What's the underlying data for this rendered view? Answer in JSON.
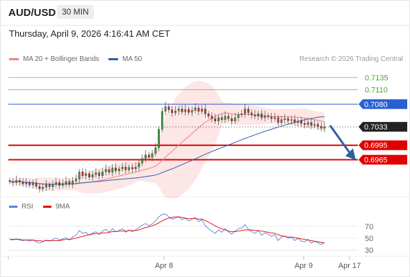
{
  "header": {
    "symbol": "AUD/USD",
    "timeframe": "30 MIN"
  },
  "datetime": "Thursday, April 9, 2026 4:16:41 AM CET",
  "legend": {
    "bb": "MA 20 + Bollinger Bands",
    "ma50": "MA 50"
  },
  "credit": "Research © 2026 Trading Central",
  "rsi_legend": {
    "rsi": "RSI",
    "ma": "9MA"
  },
  "colors": {
    "bb": "#f08080",
    "ma50": "#2b5fa8",
    "resistance": "#4aa52a",
    "pivot": "#2a5fd0",
    "support": "#e00000",
    "current": "#222222",
    "rsi": "#5b7fd6",
    "rsi_ma": "#e00000",
    "arrow": "#2f5f9e",
    "up": "#3a9a3a",
    "down": "#cc2b2b"
  },
  "chart_data": [
    {
      "type": "candlestick",
      "x_ticks": [
        "Apr 8",
        "Apr 9",
        "Apr 17"
      ],
      "levels": [
        {
          "value": 0.7135,
          "label": "0.7135",
          "kind": "resistance"
        },
        {
          "value": 0.711,
          "label": "0.7110",
          "kind": "resistance"
        },
        {
          "value": 0.708,
          "label": "0.7080",
          "kind": "pivot"
        },
        {
          "value": 0.7033,
          "label": "0.7033",
          "kind": "current"
        },
        {
          "value": 0.6995,
          "label": "0.6995",
          "kind": "support"
        },
        {
          "value": 0.6965,
          "label": "0.6965",
          "kind": "support"
        }
      ],
      "ylim": [
        0.689,
        0.7155
      ],
      "close": [
        0.692,
        0.6918,
        0.6922,
        0.6919,
        0.6915,
        0.6917,
        0.6913,
        0.6916,
        0.691,
        0.6905,
        0.6908,
        0.6913,
        0.6909,
        0.6914,
        0.6918,
        0.6912,
        0.6916,
        0.692,
        0.6914,
        0.6921,
        0.6925,
        0.694,
        0.6932,
        0.6936,
        0.6929,
        0.6934,
        0.6938,
        0.6932,
        0.694,
        0.6945,
        0.6939,
        0.6948,
        0.6942,
        0.6946,
        0.695,
        0.6944,
        0.6949,
        0.6946,
        0.695,
        0.6958,
        0.6968,
        0.6975,
        0.697,
        0.6978,
        0.699,
        0.7028,
        0.7065,
        0.7075,
        0.7068,
        0.7062,
        0.7066,
        0.707,
        0.7064,
        0.7069,
        0.7063,
        0.7067,
        0.7072,
        0.7065,
        0.707,
        0.706,
        0.7055,
        0.705,
        0.7045,
        0.7052,
        0.7048,
        0.7055,
        0.705,
        0.7045,
        0.7052,
        0.7058,
        0.706,
        0.707,
        0.7062,
        0.7058,
        0.7055,
        0.706,
        0.7052,
        0.7056,
        0.7054,
        0.705,
        0.7052,
        0.7042,
        0.7048,
        0.705,
        0.7046,
        0.7048,
        0.7042,
        0.7045,
        0.704,
        0.7038,
        0.7042,
        0.7036,
        0.7038,
        0.7034,
        0.703,
        0.7033
      ],
      "rsi_ticks": [
        70,
        50,
        30
      ],
      "rsi": [
        48,
        47,
        49,
        47,
        46,
        47,
        45,
        47,
        44,
        42,
        44,
        47,
        45,
        48,
        50,
        47,
        49,
        51,
        47,
        52,
        55,
        63,
        58,
        60,
        55,
        59,
        61,
        56,
        62,
        65,
        60,
        66,
        61,
        63,
        66,
        60,
        64,
        61,
        64,
        68,
        72,
        75,
        71,
        74,
        79,
        86,
        90,
        91,
        86,
        82,
        84,
        86,
        81,
        84,
        79,
        82,
        85,
        78,
        81,
        71,
        66,
        62,
        58,
        64,
        60,
        66,
        61,
        57,
        62,
        66,
        67,
        73,
        65,
        61,
        58,
        63,
        55,
        59,
        57,
        53,
        56,
        46,
        52,
        54,
        50,
        52,
        46,
        50,
        45,
        44,
        48,
        42,
        45,
        42,
        39,
        43
      ],
      "rsi_ma": [
        48,
        48,
        48,
        48,
        47,
        47,
        47,
        47,
        46,
        46,
        45,
        46,
        46,
        46,
        46,
        46,
        47,
        48,
        48,
        49,
        50,
        52,
        53,
        55,
        56,
        57,
        58,
        58,
        59,
        59,
        60,
        61,
        61,
        62,
        62,
        62,
        63,
        63,
        63,
        64,
        66,
        68,
        69,
        71,
        73,
        76,
        79,
        82,
        84,
        85,
        86,
        86,
        85,
        84,
        83,
        83,
        83,
        82,
        82,
        80,
        77,
        74,
        71,
        68,
        66,
        64,
        62,
        61,
        61,
        62,
        63,
        64,
        64,
        64,
        63,
        63,
        62,
        61,
        60,
        59,
        58,
        56,
        54,
        53,
        52,
        52,
        51,
        50,
        49,
        48,
        47,
        46,
        45,
        44,
        43,
        42
      ]
    }
  ]
}
